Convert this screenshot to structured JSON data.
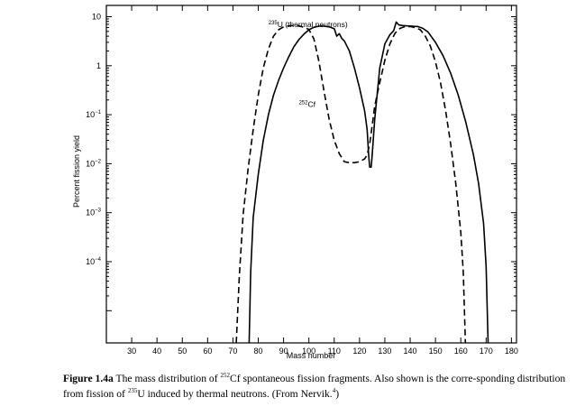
{
  "chart_data": {
    "type": "line",
    "title": "",
    "xlabel": "Mass number",
    "ylabel": "Percent fission yield",
    "xlim": [
      20,
      182
    ],
    "ylim": [
      2.2e-06,
      17
    ],
    "yscale": "log",
    "grid": false,
    "x_ticks": [
      30,
      40,
      50,
      60,
      70,
      80,
      90,
      100,
      110,
      120,
      130,
      140,
      150,
      160,
      170,
      180
    ],
    "y_ticks": [
      {
        "value": 10,
        "base": "10",
        "exp": ""
      },
      {
        "value": 1,
        "base": "1",
        "exp": ""
      },
      {
        "value": 0.1,
        "base": "10",
        "exp": "−1"
      },
      {
        "value": 0.01,
        "base": "10",
        "exp": "−2"
      },
      {
        "value": 0.001,
        "base": "10",
        "exp": "−3"
      },
      {
        "value": 0.0001,
        "base": "10",
        "exp": "−4"
      }
    ],
    "series": [
      {
        "name": "235U (thermal neutrons)",
        "style": "dashed",
        "points": [
          [
            71.3,
            2.2e-06
          ],
          [
            72.5,
            5e-05
          ],
          [
            74,
            0.0009
          ],
          [
            76,
            0.008
          ],
          [
            78,
            0.05
          ],
          [
            80,
            0.25
          ],
          [
            82,
            0.9
          ],
          [
            84,
            2.2
          ],
          [
            86,
            4.0
          ],
          [
            88,
            5.4
          ],
          [
            90,
            6.2
          ],
          [
            92,
            6.5
          ],
          [
            94,
            6.6
          ],
          [
            96,
            6.5
          ],
          [
            98,
            6.1
          ],
          [
            100,
            5.5
          ],
          [
            102,
            3.5
          ],
          [
            104,
            1.2
          ],
          [
            106,
            0.3
          ],
          [
            108,
            0.08
          ],
          [
            110,
            0.03
          ],
          [
            112,
            0.016
          ],
          [
            114,
            0.011
          ],
          [
            116,
            0.0105
          ],
          [
            118,
            0.0105
          ],
          [
            120,
            0.011
          ],
          [
            122,
            0.0125
          ],
          [
            123,
            0.015
          ],
          [
            124,
            0.025
          ],
          [
            125,
            0.06
          ],
          [
            126,
            0.15
          ],
          [
            128,
            0.45
          ],
          [
            130,
            1.3
          ],
          [
            132,
            2.8
          ],
          [
            134,
            4.6
          ],
          [
            136,
            5.8
          ],
          [
            138,
            6.3
          ],
          [
            140,
            6.3
          ],
          [
            142,
            6.0
          ],
          [
            144,
            5.4
          ],
          [
            146,
            4.0
          ],
          [
            148,
            2.5
          ],
          [
            150,
            1.2
          ],
          [
            152,
            0.45
          ],
          [
            154,
            0.12
          ],
          [
            156,
            0.025
          ],
          [
            158,
            0.004
          ],
          [
            160,
            0.0004
          ],
          [
            161,
            6e-05
          ],
          [
            161.8,
            2.2e-06
          ]
        ]
      },
      {
        "name": "252Cf",
        "style": "solid",
        "points": [
          [
            76.4,
            2.2e-06
          ],
          [
            77,
            6e-05
          ],
          [
            78,
            0.0008
          ],
          [
            80,
            0.006
          ],
          [
            82,
            0.03
          ],
          [
            84,
            0.1
          ],
          [
            86,
            0.25
          ],
          [
            88,
            0.5
          ],
          [
            90,
            0.9
          ],
          [
            92,
            1.5
          ],
          [
            94,
            2.4
          ],
          [
            96,
            3.4
          ],
          [
            98,
            4.4
          ],
          [
            100,
            5.4
          ],
          [
            102,
            6.1
          ],
          [
            104,
            6.4
          ],
          [
            106,
            6.4
          ],
          [
            108,
            6.2
          ],
          [
            110,
            5.7
          ],
          [
            111,
            4.0
          ],
          [
            112,
            4.5
          ],
          [
            113,
            3.6
          ],
          [
            114,
            3.2
          ],
          [
            116,
            2.0
          ],
          [
            118,
            0.9
          ],
          [
            120,
            0.35
          ],
          [
            122,
            0.12
          ],
          [
            123,
            0.05
          ],
          [
            123.6,
            0.015
          ],
          [
            124.0,
            0.0085
          ],
          [
            124.6,
            0.0085
          ],
          [
            125,
            0.015
          ],
          [
            126,
            0.08
          ],
          [
            128,
            0.9
          ],
          [
            130,
            2.8
          ],
          [
            132,
            4.3
          ],
          [
            133.5,
            5.2
          ],
          [
            134.5,
            7.8
          ],
          [
            135.5,
            6.8
          ],
          [
            137,
            6.6
          ],
          [
            139,
            6.5
          ],
          [
            141,
            6.4
          ],
          [
            143,
            6.3
          ],
          [
            145,
            5.8
          ],
          [
            147,
            4.9
          ],
          [
            150,
            3.0
          ],
          [
            153,
            1.6
          ],
          [
            156,
            0.7
          ],
          [
            159,
            0.25
          ],
          [
            162,
            0.07
          ],
          [
            165,
            0.015
          ],
          [
            167,
            0.004
          ],
          [
            169,
            0.0006
          ],
          [
            170,
            8e-05
          ],
          [
            170.8,
            2.2e-06
          ]
        ]
      }
    ],
    "annotations": [
      {
        "sup": "235",
        "text": "U (thermal neutrons)",
        "x": 84,
        "y": 6.2
      },
      {
        "sup": "252",
        "text": "Cf",
        "x": 96,
        "y": 0.145
      }
    ]
  },
  "caption": {
    "label": "Figure 1.4a",
    "text": " The mass distribution of 252Cf spontaneous fission fragments. Also shown is the corresponding distribution from fission of 235U induced by thermal neutrons. (From Nervik.4)",
    "parts": [
      {
        "t": "The mass distribution of ",
        "s": false
      },
      {
        "t": "252",
        "s": true
      },
      {
        "t": "Cf spontaneous fission fragments. Also shown is the corre-sponding distribution from fission of ",
        "s": false
      },
      {
        "t": "235",
        "s": true
      },
      {
        "t": "U induced by thermal neutrons. (From Nervik.",
        "s": false
      },
      {
        "t": "4",
        "s": true
      },
      {
        "t": ")",
        "s": false
      }
    ]
  }
}
